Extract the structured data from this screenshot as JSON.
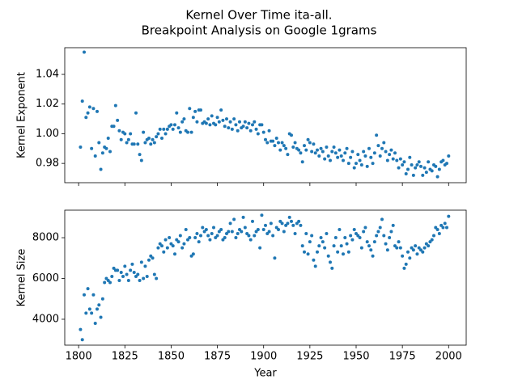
{
  "chart_data": [
    {
      "type": "scatter",
      "title": "Kernel Over Time ita-all.",
      "subtitle": "Breakpoint Analysis on Google 1grams",
      "y_label": "Kernel Exponent",
      "color": "#1f77b4",
      "x": [
        1801,
        1802,
        1803,
        1804,
        1805,
        1806,
        1807,
        1808,
        1809,
        1810,
        1811,
        1812,
        1813,
        1814,
        1815,
        1816,
        1817,
        1818,
        1819,
        1820,
        1821,
        1822,
        1823,
        1824,
        1825,
        1826,
        1827,
        1828,
        1829,
        1830,
        1831,
        1832,
        1833,
        1834,
        1835,
        1836,
        1837,
        1838,
        1839,
        1840,
        1841,
        1842,
        1843,
        1844,
        1845,
        1846,
        1847,
        1848,
        1849,
        1850,
        1851,
        1852,
        1853,
        1854,
        1855,
        1856,
        1857,
        1858,
        1859,
        1860,
        1861,
        1862,
        1863,
        1864,
        1865,
        1866,
        1867,
        1868,
        1869,
        1870,
        1871,
        1872,
        1873,
        1874,
        1875,
        1876,
        1877,
        1878,
        1879,
        1880,
        1881,
        1882,
        1883,
        1884,
        1885,
        1886,
        1887,
        1888,
        1889,
        1890,
        1891,
        1892,
        1893,
        1894,
        1895,
        1896,
        1897,
        1898,
        1899,
        1900,
        1901,
        1902,
        1903,
        1904,
        1905,
        1906,
        1907,
        1908,
        1909,
        1910,
        1911,
        1912,
        1913,
        1914,
        1915,
        1916,
        1917,
        1918,
        1919,
        1920,
        1921,
        1922,
        1923,
        1924,
        1925,
        1926,
        1927,
        1928,
        1929,
        1930,
        1931,
        1932,
        1933,
        1934,
        1935,
        1936,
        1937,
        1938,
        1939,
        1940,
        1941,
        1942,
        1943,
        1944,
        1945,
        1946,
        1947,
        1948,
        1949,
        1950,
        1951,
        1952,
        1953,
        1954,
        1955,
        1956,
        1957,
        1958,
        1959,
        1960,
        1961,
        1962,
        1963,
        1964,
        1965,
        1966,
        1967,
        1968,
        1969,
        1970,
        1971,
        1972,
        1973,
        1974,
        1975,
        1976,
        1977,
        1978,
        1979,
        1980,
        1981,
        1982,
        1983,
        1984,
        1985,
        1986,
        1987,
        1988,
        1989,
        1990,
        1991,
        1992,
        1993,
        1994,
        1995,
        1996,
        1997,
        1998,
        1999,
        2000
      ],
      "values": [
        0.991,
        1.022,
        1.055,
        1.011,
        1.014,
        1.018,
        0.99,
        1.017,
        0.985,
        1.015,
        0.994,
        0.976,
        0.987,
        0.991,
        0.99,
        0.997,
        0.988,
        1.005,
        1.005,
        1.019,
        1.009,
        1.002,
        0.996,
        1.001,
        1.0,
        0.994,
        0.996,
        1.0,
        0.993,
        0.993,
        1.014,
        0.993,
        0.986,
        0.982,
        1.001,
        0.994,
        0.996,
        0.997,
        0.993,
        0.996,
        0.994,
        0.998,
        1.0,
        1.003,
        0.997,
        1.003,
        1.0,
        1.003,
        1.005,
        1.006,
        1.003,
        1.006,
        1.014,
        1.004,
        1.001,
        1.008,
        1.01,
        1.002,
        1.001,
        1.017,
        1.001,
        1.011,
        1.015,
        1.008,
        1.016,
        1.016,
        1.007,
        1.008,
        1.007,
        1.01,
        1.006,
        1.012,
        1.007,
        1.006,
        1.011,
        1.008,
        1.016,
        1.009,
        1.005,
        1.01,
        1.004,
        1.008,
        1.003,
        1.01,
        1.006,
        1.002,
        1.008,
        1.004,
        1.005,
        1.008,
        1.004,
        1.007,
        1.002,
        1.006,
        1.008,
        1.003,
        1.0,
        1.006,
        1.006,
        1.001,
        0.996,
        0.994,
        1.002,
        0.995,
        0.995,
        0.992,
        0.997,
        0.994,
        0.989,
        0.994,
        0.992,
        0.99,
        0.986,
        1.0,
        0.999,
        0.991,
        0.994,
        0.99,
        0.989,
        0.987,
        0.981,
        0.992,
        0.989,
        0.996,
        0.994,
        0.988,
        0.993,
        0.987,
        0.989,
        0.985,
        0.99,
        0.988,
        0.983,
        0.991,
        0.985,
        0.982,
        0.988,
        0.991,
        0.987,
        0.984,
        0.989,
        0.985,
        0.982,
        0.987,
        0.99,
        0.98,
        0.984,
        0.988,
        0.977,
        0.98,
        0.986,
        0.982,
        0.979,
        0.988,
        0.985,
        0.978,
        0.99,
        0.984,
        0.98,
        0.987,
        0.999,
        0.992,
        0.985,
        0.99,
        0.994,
        0.988,
        0.982,
        0.986,
        0.989,
        0.983,
        0.987,
        0.982,
        0.977,
        0.983,
        0.979,
        0.981,
        0.973,
        0.976,
        0.984,
        0.979,
        0.972,
        0.977,
        0.979,
        0.981,
        0.978,
        0.972,
        0.977,
        0.974,
        0.981,
        0.976,
        0.975,
        0.979,
        0.978,
        0.971,
        0.976,
        0.981,
        0.982,
        0.979,
        0.98,
        0.985
      ],
      "xlim": [
        1792.5,
        2009.5
      ],
      "xticks": [
        1800,
        1825,
        1850,
        1875,
        1900,
        1925,
        1950,
        1975,
        2000
      ],
      "ylim": [
        0.967,
        1.058
      ],
      "yticks": [
        0.98,
        {
          "value": 1.0,
          "label": "1.00"
        },
        1.02,
        1.04
      ]
    },
    {
      "type": "scatter",
      "x_label": "Year",
      "y_label": "Kernel Size",
      "color": "#1f77b4",
      "x": [
        1801,
        1802,
        1803,
        1804,
        1805,
        1806,
        1807,
        1808,
        1809,
        1810,
        1811,
        1812,
        1813,
        1814,
        1815,
        1816,
        1817,
        1818,
        1819,
        1820,
        1821,
        1822,
        1823,
        1824,
        1825,
        1826,
        1827,
        1828,
        1829,
        1830,
        1831,
        1832,
        1833,
        1834,
        1835,
        1836,
        1837,
        1838,
        1839,
        1840,
        1841,
        1842,
        1843,
        1844,
        1845,
        1846,
        1847,
        1848,
        1849,
        1850,
        1851,
        1852,
        1853,
        1854,
        1855,
        1856,
        1857,
        1858,
        1859,
        1860,
        1861,
        1862,
        1863,
        1864,
        1865,
        1866,
        1867,
        1868,
        1869,
        1870,
        1871,
        1872,
        1873,
        1874,
        1875,
        1876,
        1877,
        1878,
        1879,
        1880,
        1881,
        1882,
        1883,
        1884,
        1885,
        1886,
        1887,
        1888,
        1889,
        1890,
        1891,
        1892,
        1893,
        1894,
        1895,
        1896,
        1897,
        1898,
        1899,
        1900,
        1901,
        1902,
        1903,
        1904,
        1905,
        1906,
        1907,
        1908,
        1909,
        1910,
        1911,
        1912,
        1913,
        1914,
        1915,
        1916,
        1917,
        1918,
        1919,
        1920,
        1921,
        1922,
        1923,
        1924,
        1925,
        1926,
        1927,
        1928,
        1929,
        1930,
        1931,
        1932,
        1933,
        1934,
        1935,
        1936,
        1937,
        1938,
        1939,
        1940,
        1941,
        1942,
        1943,
        1944,
        1945,
        1946,
        1947,
        1948,
        1949,
        1950,
        1951,
        1952,
        1953,
        1954,
        1955,
        1956,
        1957,
        1958,
        1959,
        1960,
        1961,
        1962,
        1963,
        1964,
        1965,
        1966,
        1967,
        1968,
        1969,
        1970,
        1971,
        1972,
        1973,
        1974,
        1975,
        1976,
        1977,
        1978,
        1979,
        1980,
        1981,
        1982,
        1983,
        1984,
        1985,
        1986,
        1987,
        1988,
        1989,
        1990,
        1991,
        1992,
        1993,
        1994,
        1995,
        1996,
        1997,
        1998,
        1999,
        2000
      ],
      "values": [
        3500,
        3000,
        5200,
        4300,
        5500,
        4500,
        4300,
        5200,
        3800,
        4500,
        4700,
        4100,
        5000,
        5800,
        6000,
        5900,
        5800,
        6100,
        6500,
        6400,
        6400,
        5900,
        6300,
        6100,
        6600,
        6200,
        5900,
        6400,
        6700,
        6300,
        6100,
        6200,
        5900,
        6800,
        6000,
        6600,
        6100,
        6900,
        7100,
        7000,
        6200,
        6000,
        7500,
        7700,
        7600,
        7300,
        7900,
        7500,
        8000,
        7700,
        7600,
        7200,
        7900,
        7800,
        8100,
        7500,
        7700,
        8400,
        7900,
        8000,
        7100,
        7200,
        8000,
        8200,
        7800,
        8100,
        8500,
        8300,
        8400,
        8100,
        7900,
        8200,
        8500,
        8000,
        8100,
        8300,
        8400,
        7900,
        8000,
        8200,
        8300,
        8700,
        8300,
        8900,
        8000,
        8200,
        8400,
        8300,
        9000,
        8500,
        8200,
        8100,
        7900,
        8800,
        8100,
        8300,
        8400,
        7500,
        9100,
        8400,
        8600,
        8200,
        8300,
        8700,
        8100,
        7000,
        8500,
        8400,
        8800,
        8700,
        8300,
        8600,
        8700,
        9000,
        8800,
        8600,
        8200,
        8700,
        8800,
        8600,
        7600,
        7300,
        8200,
        7200,
        7800,
        8100,
        6900,
        6600,
        7300,
        7600,
        8000,
        7800,
        7500,
        8200,
        7100,
        6800,
        6500,
        7600,
        8000,
        7300,
        8400,
        7600,
        7200,
        8000,
        7700,
        7300,
        8100,
        7900,
        8400,
        8200,
        8100,
        8000,
        7500,
        8300,
        8500,
        7800,
        7600,
        7400,
        7100,
        7800,
        8100,
        8300,
        8500,
        8900,
        8100,
        7700,
        7400,
        8000,
        8300,
        8600,
        7600,
        7500,
        7800,
        7500,
        7100,
        6500,
        6700,
        7300,
        7000,
        7500,
        7400,
        7600,
        7200,
        7500,
        7400,
        7300,
        7500,
        7700,
        7600,
        7800,
        7900,
        8100,
        8500,
        8400,
        8200,
        8600,
        8500,
        8700,
        8500,
        9050
      ],
      "xlim": [
        1792.5,
        2009.5
      ],
      "xticks": [
        1800,
        1825,
        1850,
        1875,
        1900,
        1925,
        1950,
        1975,
        2000
      ],
      "ylim": [
        2730,
        9350
      ],
      "yticks": [
        4000,
        6000,
        8000
      ]
    }
  ]
}
